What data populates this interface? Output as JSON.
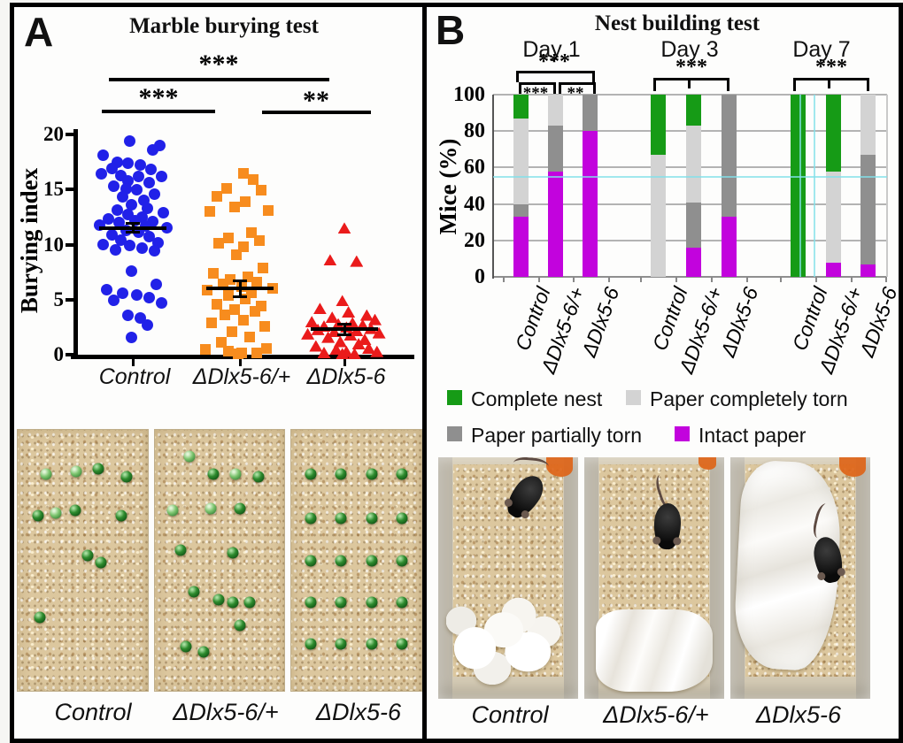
{
  "figure": {
    "panel_a": {
      "letter": "A",
      "title": "Marble burying test",
      "photo_labels": [
        "Control",
        "ΔDlx5-6/+",
        "ΔDlx5-6"
      ]
    },
    "panel_b": {
      "letter": "B",
      "title": "Nest building test",
      "legend": [
        {
          "label": "Complete nest",
          "color": "#169b16"
        },
        {
          "label": "Paper completely torn",
          "color": "#d3d3d3"
        },
        {
          "label": "Paper partially torn",
          "color": "#8f8f8f"
        },
        {
          "label": "Intact paper",
          "color": "#c203dd"
        }
      ],
      "photo_labels": [
        "Control",
        "ΔDlx5-6/+",
        "ΔDlx5-6"
      ]
    }
  },
  "chart_data": [
    {
      "type": "scatter",
      "title": "Marble burying test",
      "ylabel": "Burying index",
      "ylim": [
        0,
        20
      ],
      "yticks": [
        0,
        5,
        10,
        15,
        20
      ],
      "categories": [
        "Control",
        "ΔDlx5-6/+",
        "ΔDlx5-6"
      ],
      "means": [
        11.5,
        6.0,
        2.3
      ],
      "sem": [
        0.4,
        0.7,
        0.5
      ],
      "significance": [
        {
          "between": [
            "Control",
            "ΔDlx5-6"
          ],
          "label": "***"
        },
        {
          "between": [
            "Control",
            "ΔDlx5-6/+"
          ],
          "label": "***"
        },
        {
          "between": [
            "ΔDlx5-6/+",
            "ΔDlx5-6"
          ],
          "label": "**"
        }
      ],
      "series": [
        {
          "name": "Control",
          "marker": "circle",
          "color": "#2121e8",
          "points": [
            [
              -0.1,
              19.4
            ],
            [
              0.75,
              19.0
            ],
            [
              0.55,
              18.6
            ],
            [
              -0.85,
              18.1
            ],
            [
              -0.45,
              17.5
            ],
            [
              -0.15,
              17.4
            ],
            [
              0.2,
              17.2
            ],
            [
              -0.6,
              16.9
            ],
            [
              0.5,
              16.8
            ],
            [
              -0.9,
              16.4
            ],
            [
              -0.35,
              16.3
            ],
            [
              0.15,
              16.2
            ],
            [
              0.8,
              16.2
            ],
            [
              -0.15,
              15.8
            ],
            [
              0.45,
              15.6
            ],
            [
              -0.55,
              15.3
            ],
            [
              -0.2,
              15.1
            ],
            [
              0.1,
              15.0
            ],
            [
              0.6,
              14.6
            ],
            [
              -0.3,
              14.3
            ],
            [
              0.3,
              14.0
            ],
            [
              -0.05,
              13.6
            ],
            [
              0.4,
              13.3
            ],
            [
              -0.45,
              13.1
            ],
            [
              0.85,
              12.9
            ],
            [
              -0.15,
              12.7
            ],
            [
              0.25,
              12.5
            ],
            [
              -0.7,
              12.3
            ],
            [
              0.05,
              12.2
            ],
            [
              0.55,
              12.1
            ],
            [
              -0.4,
              12.0
            ],
            [
              -0.95,
              11.8
            ],
            [
              0.35,
              11.7
            ],
            [
              0.95,
              11.5
            ],
            [
              -0.2,
              11.3
            ],
            [
              0.15,
              11.1
            ],
            [
              -0.6,
              10.9
            ],
            [
              0.45,
              10.7
            ],
            [
              -0.35,
              10.4
            ],
            [
              0.7,
              10.2
            ],
            [
              -0.85,
              10.0
            ],
            [
              -0.1,
              9.9
            ],
            [
              0.25,
              9.7
            ],
            [
              -0.5,
              9.5
            ],
            [
              0.6,
              9.4
            ],
            [
              -0.05,
              7.6
            ],
            [
              0.65,
              6.4
            ],
            [
              -0.75,
              5.9
            ],
            [
              -0.3,
              5.6
            ],
            [
              0.1,
              5.4
            ],
            [
              0.45,
              5.2
            ],
            [
              -0.55,
              4.9
            ],
            [
              0.8,
              4.7
            ],
            [
              -0.15,
              3.6
            ],
            [
              0.2,
              3.3
            ],
            [
              0.4,
              2.7
            ],
            [
              -0.05,
              1.6
            ]
          ]
        },
        {
          "name": "ΔDlx5-6/+",
          "marker": "square",
          "color": "#f78c1e",
          "points": [
            [
              0.1,
              16.5
            ],
            [
              0.35,
              15.9
            ],
            [
              -0.35,
              15.1
            ],
            [
              0.55,
              14.9
            ],
            [
              -0.6,
              14.4
            ],
            [
              0.15,
              13.9
            ],
            [
              -0.15,
              13.4
            ],
            [
              0.75,
              13.1
            ],
            [
              -0.8,
              13.0
            ],
            [
              0.3,
              11.1
            ],
            [
              -0.3,
              10.6
            ],
            [
              0.5,
              10.4
            ],
            [
              -0.55,
              10.1
            ],
            [
              0.1,
              9.8
            ],
            [
              -0.1,
              9.1
            ],
            [
              0.6,
              7.9
            ],
            [
              -0.7,
              7.4
            ],
            [
              0.2,
              7.1
            ],
            [
              -0.25,
              6.8
            ],
            [
              0.45,
              6.6
            ],
            [
              -0.45,
              6.4
            ],
            [
              0.05,
              6.2
            ],
            [
              0.85,
              6.0
            ],
            [
              -0.85,
              5.9
            ],
            [
              0.3,
              5.6
            ],
            [
              -0.3,
              5.4
            ],
            [
              0.15,
              5.1
            ],
            [
              -0.6,
              4.6
            ],
            [
              0.55,
              4.4
            ],
            [
              -0.15,
              4.1
            ],
            [
              0.4,
              3.9
            ],
            [
              -0.4,
              3.6
            ],
            [
              0.1,
              3.1
            ],
            [
              -0.75,
              2.9
            ],
            [
              0.65,
              2.6
            ],
            [
              -0.2,
              2.1
            ],
            [
              0.25,
              1.6
            ],
            [
              -0.5,
              1.1
            ],
            [
              0.7,
              0.6
            ],
            [
              -0.9,
              0.5
            ],
            [
              -0.3,
              0.3
            ],
            [
              0.05,
              0.2
            ],
            [
              0.45,
              0.2
            ],
            [
              -0.05,
              0.1
            ]
          ]
        },
        {
          "name": "ΔDlx5-6",
          "marker": "triangle",
          "color": "#ea1b1b",
          "points": [
            [
              0.0,
              11.5
            ],
            [
              -0.35,
              8.6
            ],
            [
              0.3,
              8.5
            ],
            [
              -0.05,
              4.9
            ],
            [
              -0.6,
              4.2
            ],
            [
              0.1,
              3.9
            ],
            [
              0.55,
              3.6
            ],
            [
              -0.3,
              3.4
            ],
            [
              0.75,
              3.2
            ],
            [
              -0.8,
              3.0
            ],
            [
              0.2,
              2.9
            ],
            [
              -0.15,
              2.8
            ],
            [
              0.45,
              2.7
            ],
            [
              -0.5,
              2.6
            ],
            [
              0.05,
              2.5
            ],
            [
              0.65,
              2.4
            ],
            [
              -0.65,
              2.3
            ],
            [
              0.3,
              2.2
            ],
            [
              -0.25,
              2.1
            ],
            [
              0.85,
              2.0
            ],
            [
              -0.9,
              1.9
            ],
            [
              0.15,
              1.8
            ],
            [
              -0.4,
              1.6
            ],
            [
              0.5,
              1.4
            ],
            [
              -0.1,
              1.2
            ],
            [
              0.35,
              1.0
            ],
            [
              -0.7,
              0.8
            ],
            [
              0.6,
              0.6
            ],
            [
              -0.2,
              0.5
            ],
            [
              0.05,
              0.3
            ],
            [
              0.8,
              0.3
            ],
            [
              -0.5,
              0.2
            ],
            [
              0.25,
              0.1
            ],
            [
              -0.05,
              0.1
            ]
          ]
        }
      ]
    },
    {
      "type": "bar",
      "stacked": true,
      "title": "Nest building test",
      "ylabel": "Mice (%)",
      "ylim": [
        0,
        100
      ],
      "yticks": [
        0,
        20,
        40,
        60,
        80,
        100
      ],
      "day_groups": [
        "Day 1",
        "Day 3",
        "Day 7"
      ],
      "categories": [
        "Control",
        "ΔDlx5-6/+",
        "ΔDlx5-6"
      ],
      "bar_order": [
        "Day 1 Control",
        "Day 1 ΔDlx5-6/+",
        "Day 1 ΔDlx5-6",
        "Day 3 Control",
        "Day 3 ΔDlx5-6/+",
        "Day 3 ΔDlx5-6",
        "Day 7 Control",
        "Day 7 ΔDlx5-6/+",
        "Day 7 ΔDlx5-6"
      ],
      "series": [
        {
          "name": "Intact paper",
          "color": "#c203dd",
          "values": [
            33,
            58,
            80,
            0,
            16,
            33,
            0,
            8,
            7
          ]
        },
        {
          "name": "Paper partially torn",
          "color": "#8f8f8f",
          "values": [
            7,
            25,
            20,
            0,
            25,
            67,
            0,
            0,
            60
          ]
        },
        {
          "name": "Paper completely torn",
          "color": "#d3d3d3",
          "values": [
            47,
            17,
            0,
            67,
            42,
            0,
            0,
            50,
            33
          ]
        },
        {
          "name": "Complete nest",
          "color": "#169b16",
          "values": [
            13,
            0,
            0,
            33,
            17,
            0,
            100,
            42,
            0
          ]
        }
      ],
      "significance": [
        {
          "day": "Day 1",
          "between": [
            "Control",
            "ΔDlx5-6"
          ],
          "label": "***"
        },
        {
          "day": "Day 1",
          "between": [
            "Control",
            "ΔDlx5-6/+"
          ],
          "label": "***"
        },
        {
          "day": "Day 1",
          "between": [
            "ΔDlx5-6/+",
            "ΔDlx5-6"
          ],
          "label": "**"
        },
        {
          "day": "Day 3",
          "between": [
            "Control",
            "ΔDlx5-6"
          ],
          "label": "***"
        },
        {
          "day": "Day 7",
          "between": [
            "Control",
            "ΔDlx5-6"
          ],
          "label": "***"
        }
      ],
      "legend_position": "bottom"
    }
  ],
  "photos": {
    "marble_test": {
      "control": [
        [
          22,
          17,
          1
        ],
        [
          45,
          16,
          1
        ],
        [
          62,
          15,
          0
        ],
        [
          84,
          18,
          0
        ],
        [
          16,
          33,
          0
        ],
        [
          29,
          32,
          1
        ],
        [
          44,
          31,
          0
        ],
        [
          80,
          33,
          0
        ],
        [
          54,
          48,
          0
        ],
        [
          64,
          51,
          0
        ],
        [
          17,
          72,
          0
        ]
      ],
      "het": [
        [
          27,
          10,
          1
        ],
        [
          45,
          17,
          0
        ],
        [
          62,
          17,
          1
        ],
        [
          80,
          18,
          0
        ],
        [
          14,
          31,
          1
        ],
        [
          43,
          30,
          1
        ],
        [
          66,
          30,
          0
        ],
        [
          20,
          46,
          0
        ],
        [
          60,
          47,
          0
        ],
        [
          30,
          62,
          0
        ],
        [
          49,
          65,
          0
        ],
        [
          60,
          66,
          0
        ],
        [
          73,
          66,
          0
        ],
        [
          66,
          75,
          0
        ],
        [
          24,
          83,
          0
        ],
        [
          38,
          85,
          0
        ]
      ],
      "ko": [
        [
          15,
          17,
          0
        ],
        [
          38,
          17,
          0
        ],
        [
          62,
          17,
          0
        ],
        [
          85,
          17,
          0
        ],
        [
          15,
          34,
          0
        ],
        [
          38,
          34,
          0
        ],
        [
          62,
          34,
          0
        ],
        [
          85,
          34,
          0
        ],
        [
          15,
          50,
          0
        ],
        [
          38,
          50,
          0
        ],
        [
          62,
          50,
          0
        ],
        [
          85,
          50,
          0
        ],
        [
          15,
          66,
          0
        ],
        [
          38,
          66,
          0
        ],
        [
          62,
          66,
          0
        ],
        [
          85,
          66,
          0
        ],
        [
          15,
          82,
          0
        ],
        [
          38,
          82,
          0
        ],
        [
          62,
          82,
          0
        ],
        [
          85,
          82,
          0
        ]
      ]
    }
  }
}
